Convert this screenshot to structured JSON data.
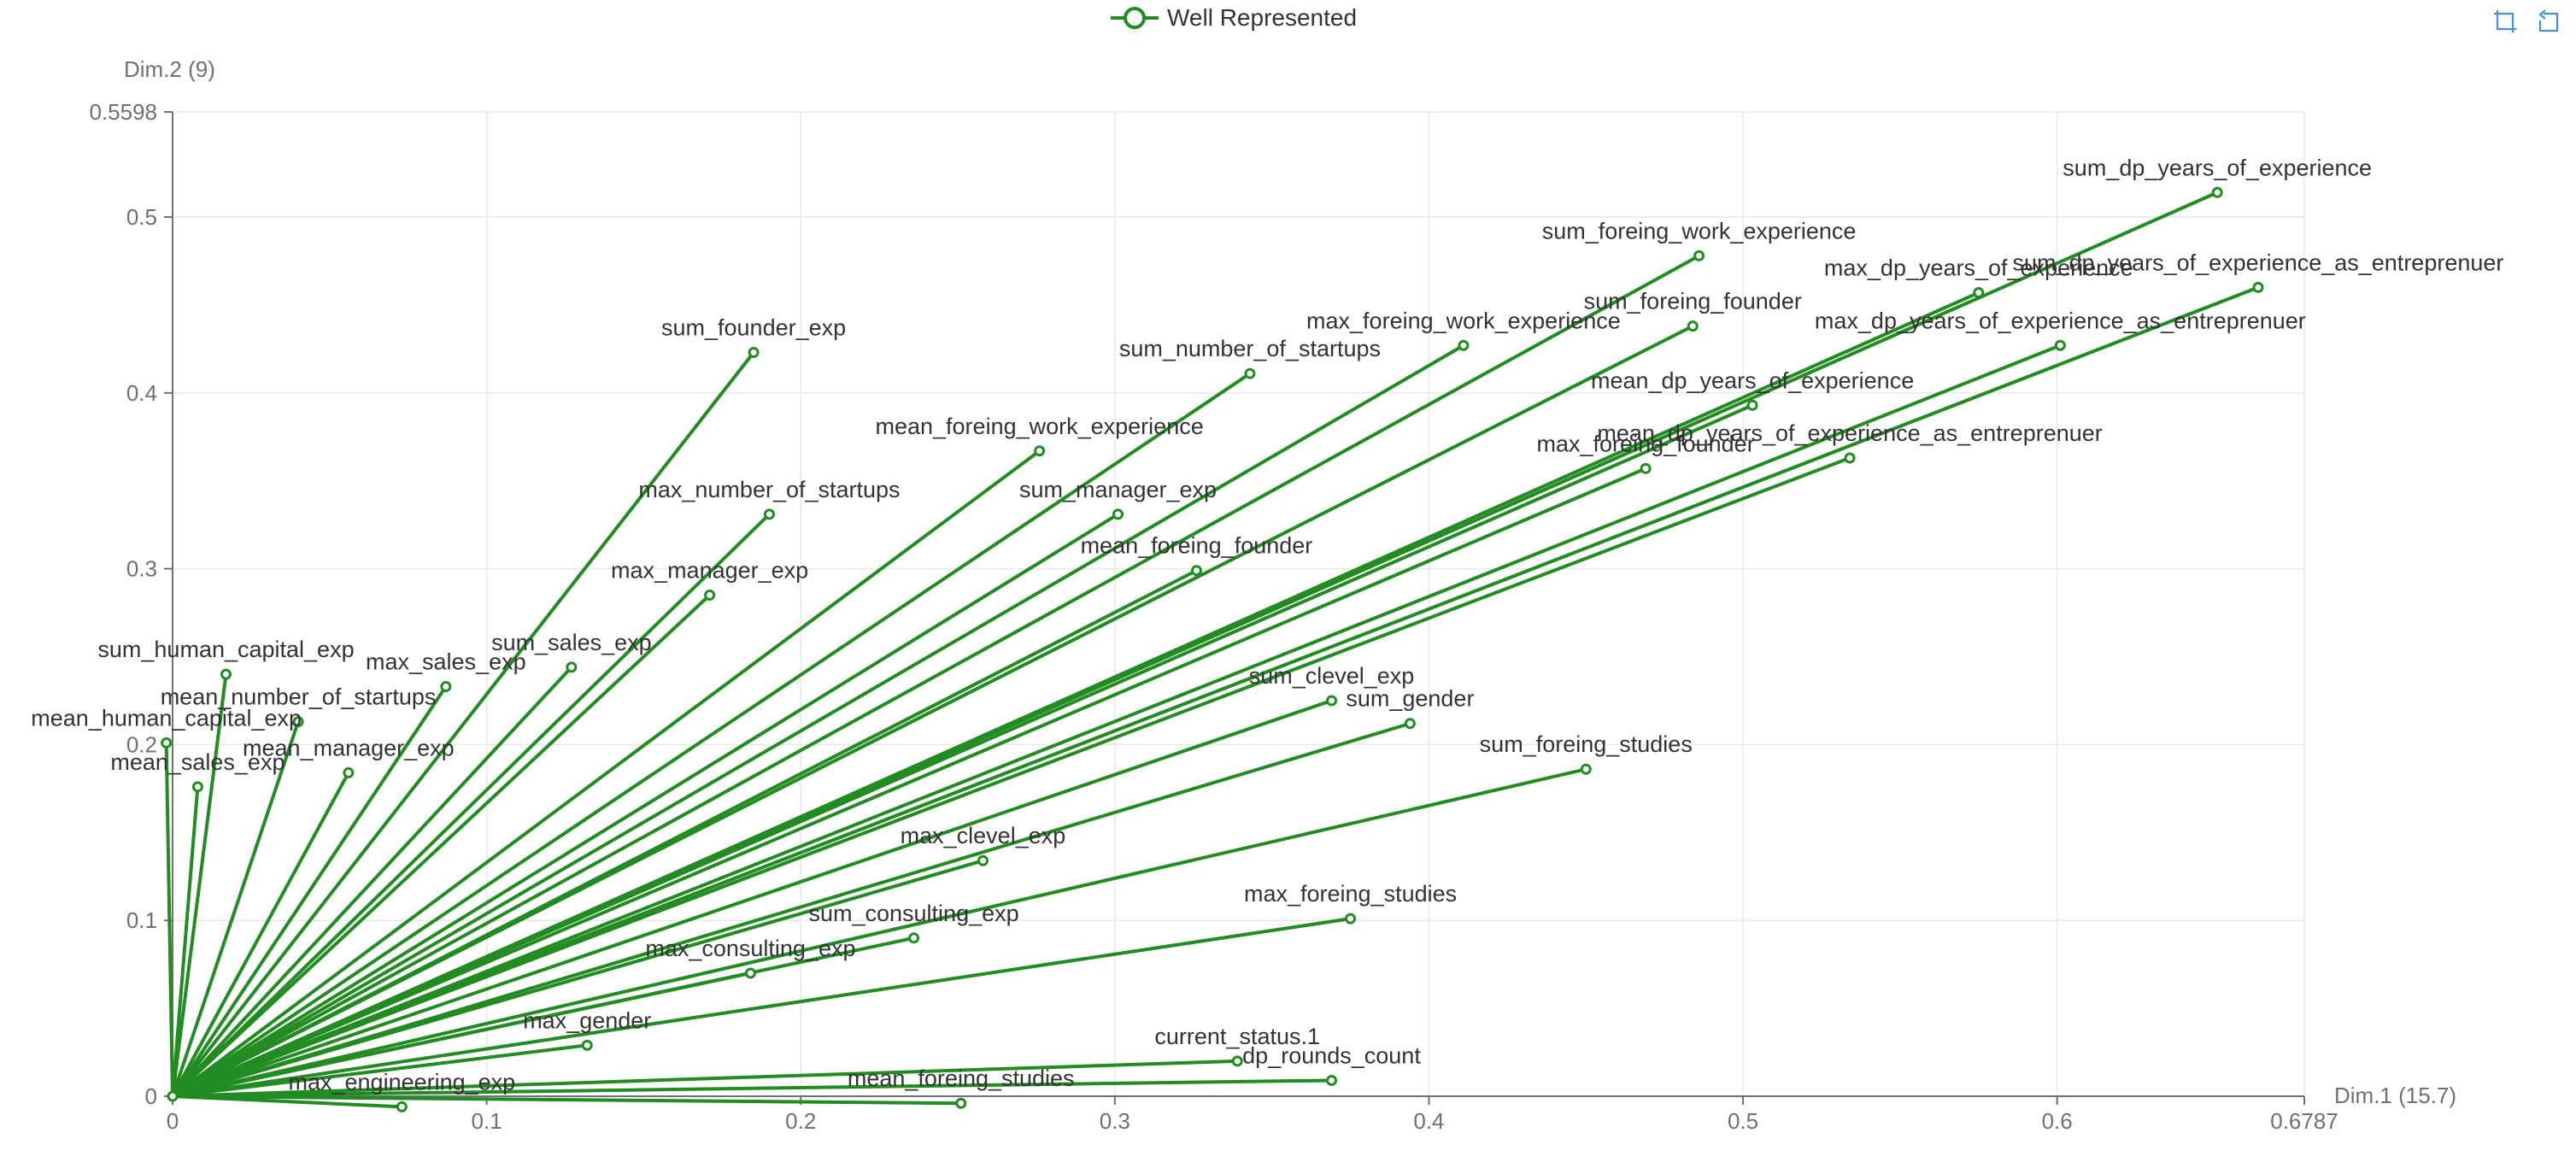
{
  "legend": {
    "label": "Well Represented"
  },
  "toolbox": {
    "zoom_icon": "zoom-icon",
    "restore_icon": "restore-icon"
  },
  "colors": {
    "series": "#228b22",
    "axis": "#6e7079",
    "grid": "#e8e8e8",
    "text": "#333333"
  },
  "chart_data": {
    "type": "line",
    "subtype": "biplot-vectors",
    "xlabel": "Dim.1 (15.7)",
    "ylabel": "Dim.2 (9)",
    "xlim": [
      0,
      0.6787
    ],
    "ylim": [
      0,
      0.5598
    ],
    "xticks": [
      "0",
      "0.1",
      "0.2",
      "0.3",
      "0.4",
      "0.5",
      "0.6",
      "0.6787"
    ],
    "yticks": [
      "0",
      "0.1",
      "0.2",
      "0.3",
      "0.4",
      "0.5",
      "0.5598"
    ],
    "grid": true,
    "legend_position": "top-center",
    "series": [
      {
        "name": "Well Represented",
        "origin": [
          0,
          0
        ],
        "points": [
          {
            "label": "sum_dp_years_of_experience",
            "x": 0.651,
            "y": 0.514
          },
          {
            "label": "sum_dp_years_of_experience_as_entreprenuer",
            "x": 0.664,
            "y": 0.46
          },
          {
            "label": "sum_foreing_work_experience",
            "x": 0.486,
            "y": 0.478
          },
          {
            "label": "max_dp_years_of_experience",
            "x": 0.575,
            "y": 0.457
          },
          {
            "label": "max_dp_years_of_experience_as_entreprenuer",
            "x": 0.601,
            "y": 0.427
          },
          {
            "label": "sum_foreing_founder",
            "x": 0.484,
            "y": 0.438
          },
          {
            "label": "max_foreing_work_experience",
            "x": 0.411,
            "y": 0.427
          },
          {
            "label": "sum_founder_exp",
            "x": 0.185,
            "y": 0.423
          },
          {
            "label": "sum_number_of_startups",
            "x": 0.343,
            "y": 0.411
          },
          {
            "label": "mean_dp_years_of_experience",
            "x": 0.503,
            "y": 0.393
          },
          {
            "label": "mean_foreing_work_experience",
            "x": 0.276,
            "y": 0.367
          },
          {
            "label": "mean_dp_years_of_experience_as_entreprenuer",
            "x": 0.534,
            "y": 0.363
          },
          {
            "label": "max_foreing_founder",
            "x": 0.469,
            "y": 0.357
          },
          {
            "label": "max_number_of_startups",
            "x": 0.19,
            "y": 0.331
          },
          {
            "label": "sum_manager_exp",
            "x": 0.301,
            "y": 0.331
          },
          {
            "label": "mean_foreing_founder",
            "x": 0.326,
            "y": 0.299
          },
          {
            "label": "max_manager_exp",
            "x": 0.171,
            "y": 0.285
          },
          {
            "label": "sum_sales_exp",
            "x": 0.127,
            "y": 0.244
          },
          {
            "label": "sum_human_capital_exp",
            "x": 0.017,
            "y": 0.24
          },
          {
            "label": "max_sales_exp",
            "x": 0.087,
            "y": 0.233
          },
          {
            "label": "mean_number_of_startups",
            "x": 0.04,
            "y": 0.213
          },
          {
            "label": "sum_clevel_exp",
            "x": 0.369,
            "y": 0.225
          },
          {
            "label": "sum_gender",
            "x": 0.394,
            "y": 0.212
          },
          {
            "label": "mean_human_capital_exp",
            "x": -0.002,
            "y": 0.201
          },
          {
            "label": "mean_manager_exp",
            "x": 0.056,
            "y": 0.184
          },
          {
            "label": "mean_sales_exp",
            "x": 0.008,
            "y": 0.176
          },
          {
            "label": "sum_foreing_studies",
            "x": 0.45,
            "y": 0.186
          },
          {
            "label": "max_clevel_exp",
            "x": 0.258,
            "y": 0.134
          },
          {
            "label": "max_foreing_studies",
            "x": 0.375,
            "y": 0.101
          },
          {
            "label": "sum_consulting_exp",
            "x": 0.236,
            "y": 0.09
          },
          {
            "label": "max_consulting_exp",
            "x": 0.184,
            "y": 0.07
          },
          {
            "label": "max_gender",
            "x": 0.132,
            "y": 0.029
          },
          {
            "label": "current_status.1",
            "x": 0.339,
            "y": 0.02
          },
          {
            "label": "dp_rounds_count",
            "x": 0.369,
            "y": 0.009
          },
          {
            "label": "max_engineering_exp",
            "x": 0.073,
            "y": -0.006
          },
          {
            "label": "mean_foreing_studies",
            "x": 0.251,
            "y": -0.004
          }
        ]
      }
    ]
  }
}
